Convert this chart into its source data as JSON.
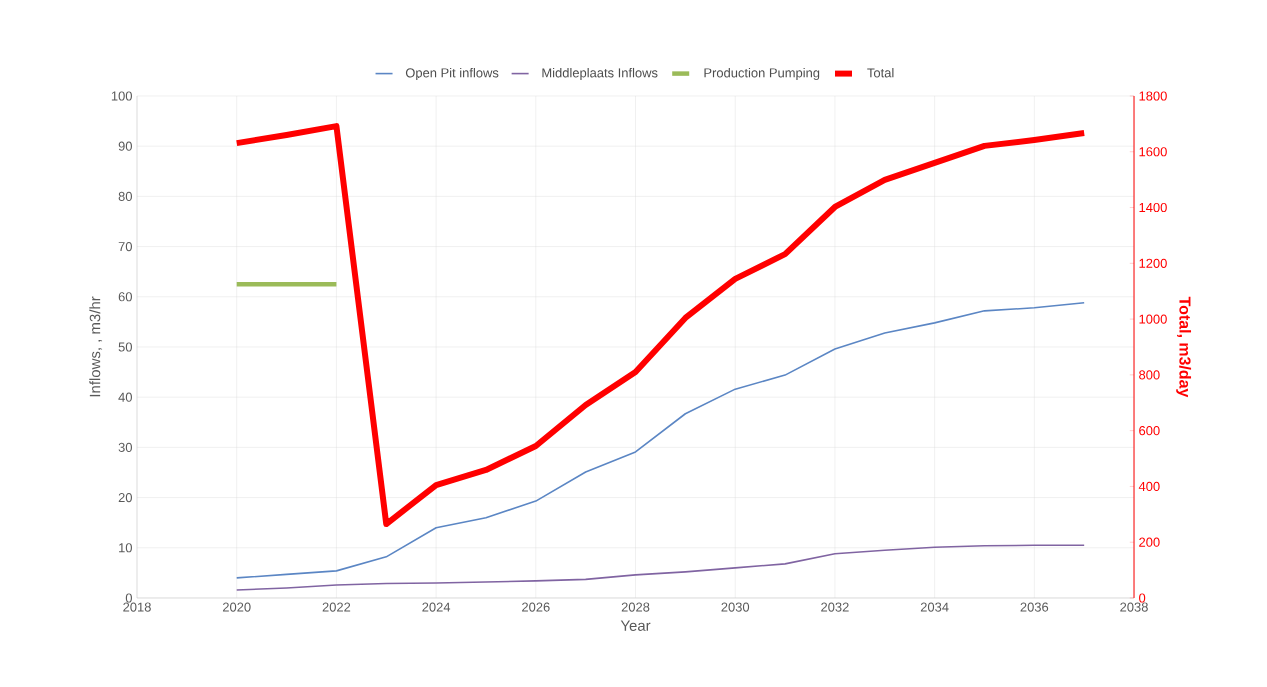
{
  "chart_data": {
    "type": "line",
    "xlabel": "Year",
    "ylabel": "Inflows, , m3/hr",
    "y2label": "Total, m3/day",
    "x": [
      2020,
      2021,
      2022,
      2023,
      2024,
      2025,
      2026,
      2027,
      2028,
      2029,
      2030,
      2031,
      2032,
      2033,
      2034,
      2035,
      2036,
      2037
    ],
    "series": [
      {
        "name": "Open Pit inflows",
        "color": "#5b86c4",
        "values": [
          4.0,
          4.7,
          5.4,
          8.2,
          14.0,
          16.0,
          19.3,
          25.1,
          29.1,
          36.7,
          41.6,
          44.4,
          49.6,
          52.8,
          54.8,
          57.2,
          57.8,
          58.8
        ]
      },
      {
        "name": "Middleplaats Inflows",
        "color": "#8064a2",
        "values": [
          1.6,
          2.0,
          2.6,
          2.9,
          3.0,
          3.2,
          3.4,
          3.7,
          4.6,
          5.2,
          6.0,
          6.8,
          8.8,
          9.5,
          10.1,
          10.4,
          10.5,
          10.5
        ]
      },
      {
        "name": "Production Pumping",
        "color": "#9bbb59",
        "values": [
          62.5,
          62.5,
          62.5,
          null,
          null,
          null,
          null,
          null,
          null,
          null,
          null,
          null,
          null,
          null,
          null,
          null,
          null,
          null
        ]
      },
      {
        "name": "Total",
        "color": "#ff0000",
        "axis": "y2",
        "values": [
          1631,
          1660,
          1692,
          265,
          405,
          459,
          545,
          692,
          810,
          1004,
          1144,
          1233,
          1402,
          1499,
          1560,
          1621,
          1642,
          1667
        ]
      }
    ],
    "xlim": [
      2018,
      2038
    ],
    "xticks": [
      2018,
      2020,
      2022,
      2024,
      2026,
      2028,
      2030,
      2032,
      2034,
      2036,
      2038
    ],
    "ylim": [
      0,
      100
    ],
    "yticks": [
      0,
      10,
      20,
      30,
      40,
      50,
      60,
      70,
      80,
      90,
      100
    ],
    "y2lim": [
      0,
      1800
    ],
    "y2ticks": [
      0,
      200,
      400,
      600,
      800,
      1000,
      1200,
      1400,
      1600,
      1800
    ],
    "grid": true,
    "legend": "top",
    "marker": "none",
    "line_style": "solid"
  }
}
